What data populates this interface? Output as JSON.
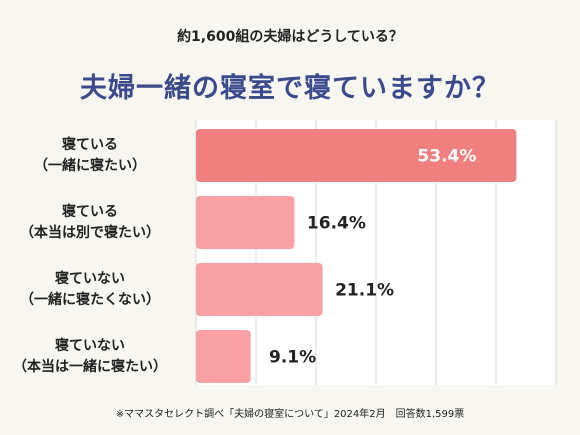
{
  "header": {
    "subtitle": "約1,600組の夫婦はどうしている？",
    "title": "夫婦一緒の寝室で寝ていますか？"
  },
  "chart_data": {
    "type": "bar",
    "orientation": "horizontal",
    "categories": [
      [
        "寝ている",
        "（一緒に寝たい）"
      ],
      [
        "寝ている",
        "（本当は別で寝たい）"
      ],
      [
        "寝ていない",
        "（一緒に寝たくない）"
      ],
      [
        "寝ていない",
        "（本当は一緒に寝たい）"
      ]
    ],
    "values": [
      53.4,
      16.4,
      21.1,
      9.1
    ],
    "value_labels": [
      "53.4%",
      "16.4%",
      "21.1%",
      "9.1%"
    ],
    "xlim": [
      0,
      60
    ],
    "grid": true,
    "colors": {
      "highlight": "#f08080",
      "bar": "#f8a0a3",
      "grid": "#d9d9d9",
      "value_inside": "#ffffff",
      "value_outside": "#222222"
    }
  },
  "footnote": "※ママスタセレクト調べ「夫婦の寝室について」2024年2月　回答数1,599票"
}
